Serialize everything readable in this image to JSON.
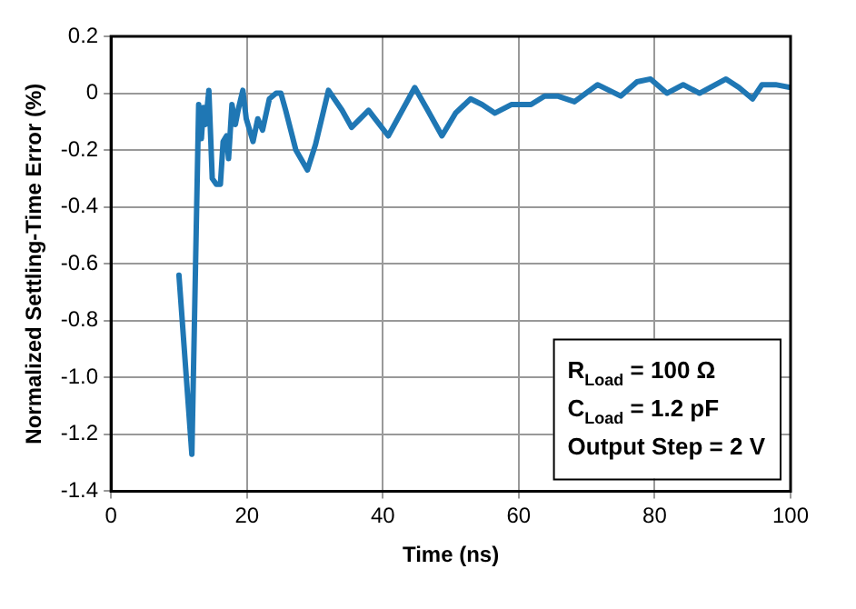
{
  "chart_data": {
    "type": "line",
    "xlabel": "Time (ns)",
    "ylabel": "Normalized Settling-Time Error (%)",
    "x": [
      10,
      11.9,
      12.9,
      13.3,
      13.6,
      13.9,
      14.4,
      14.9,
      15.5,
      16.1,
      16.5,
      17,
      17.3,
      17.8,
      18.3,
      18.7,
      19.4,
      19.9,
      20.9,
      21.6,
      22.3,
      23.3,
      24.3,
      25,
      25.7,
      27.2,
      28.9,
      30.1,
      32,
      34,
      35.4,
      37.9,
      40.8,
      44.7,
      46.6,
      48.7,
      50.7,
      52.9,
      54.6,
      56.5,
      58.9,
      61.8,
      63.8,
      65.7,
      68.2,
      71.6,
      75,
      77.4,
      79.4,
      81.8,
      84.2,
      86.6,
      90.5,
      92.4,
      94.4,
      95.8,
      97.8,
      100
    ],
    "series": [
      {
        "color": "#1f77b4",
        "values": [
          -0.64,
          -1.27,
          -0.04,
          -0.16,
          -0.05,
          -0.11,
          0.01,
          -0.3,
          -0.32,
          -0.32,
          -0.17,
          -0.15,
          -0.23,
          -0.04,
          -0.11,
          -0.06,
          0.01,
          -0.09,
          -0.17,
          -0.09,
          -0.13,
          -0.02,
          0,
          0,
          -0.06,
          -0.2,
          -0.27,
          -0.18,
          0.01,
          -0.06,
          -0.12,
          -0.06,
          -0.15,
          0.02,
          -0.06,
          -0.15,
          -0.07,
          -0.02,
          -0.04,
          -0.07,
          -0.04,
          -0.04,
          -0.01,
          -0.01,
          -0.03,
          0.03,
          -0.01,
          0.04,
          0.05,
          0,
          0.03,
          0,
          0.05,
          0.02,
          -0.02,
          0.03,
          0.03,
          0.02
        ]
      }
    ],
    "xlim": [
      0,
      100
    ],
    "xticks": [
      0,
      20,
      40,
      60,
      80,
      100
    ],
    "ylim": [
      -1.4,
      0.2
    ],
    "yticks": [
      0.2,
      0,
      -0.2,
      -0.4,
      -0.6,
      -0.8,
      {
        "value": -1,
        "label": "-1.0"
      },
      -1.2,
      -1.4
    ],
    "grid": true,
    "legend": false,
    "marker": "none",
    "line_style": "solid",
    "annotations": [
      "R$_{Load}$ = 100 Ω",
      "C$_{Load}$ = 1.2 pF",
      "Output Step = 2 V"
    ]
  }
}
